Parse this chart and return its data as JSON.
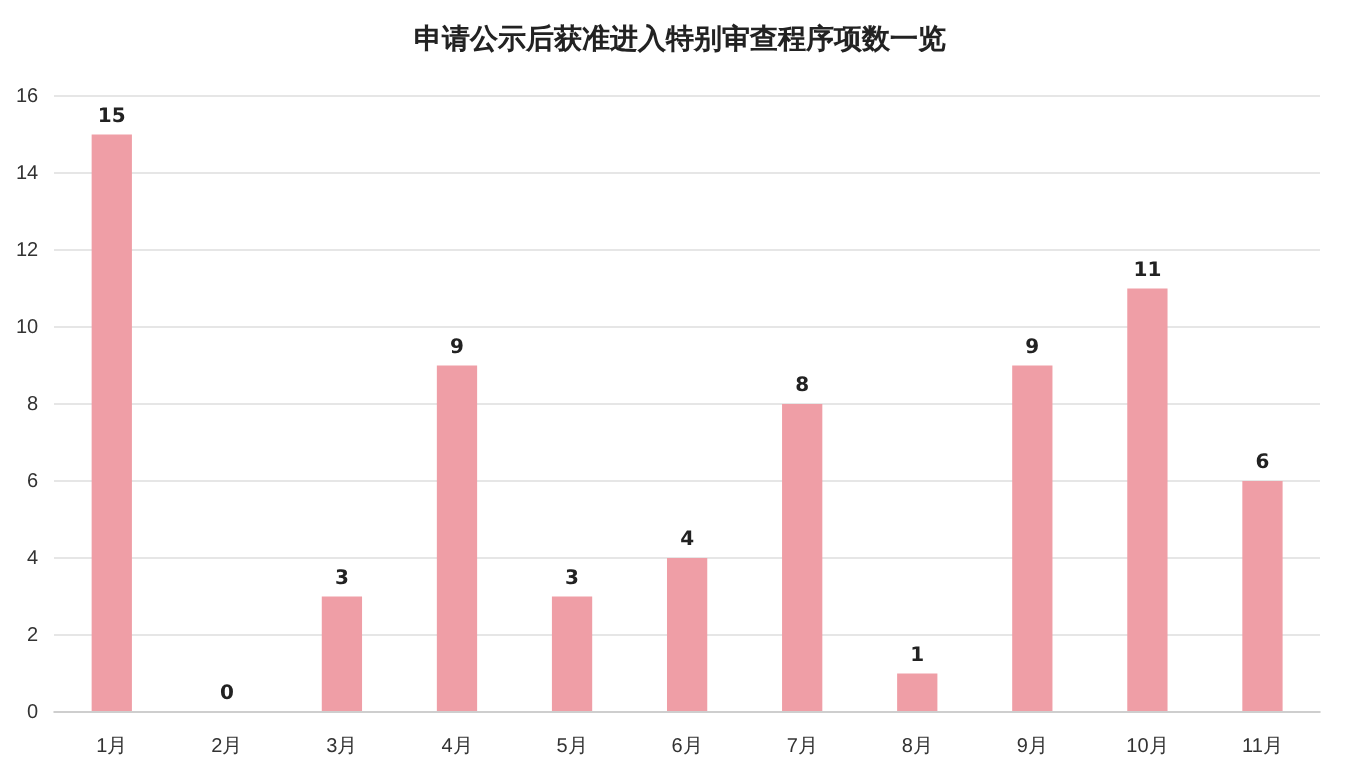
{
  "chart_data": {
    "type": "bar",
    "title": "申请公示后获准进入特别审查程序项数一览",
    "categories": [
      "1月",
      "2月",
      "3月",
      "4月",
      "5月",
      "6月",
      "7月",
      "8月",
      "9月",
      "10月",
      "11月"
    ],
    "values": [
      15,
      0,
      3,
      9,
      3,
      4,
      8,
      1,
      9,
      11,
      6
    ],
    "color": "#ef9ea6",
    "ylim": [
      0,
      16
    ],
    "yticks": [
      0,
      2,
      4,
      6,
      8,
      10,
      12,
      14,
      16
    ],
    "grid": "y",
    "data_labels": true
  }
}
